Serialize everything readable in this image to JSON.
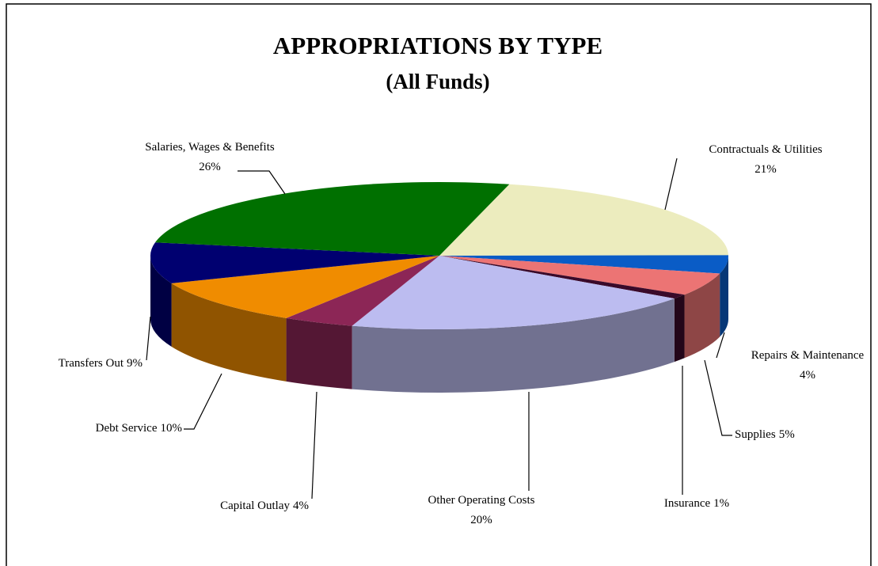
{
  "chart_data": {
    "type": "pie",
    "title": "APPROPRIATIONS BY TYPE",
    "subtitle": "(All Funds)",
    "categories": [
      "Contractuals & Utilities",
      "Repairs & Maintenance",
      "Supplies",
      "Insurance",
      "Other Operating Costs",
      "Capital Outlay",
      "Debt Service",
      "Transfers Out",
      "Salaries, Wages & Benefits"
    ],
    "values": [
      21,
      4,
      5,
      1,
      20,
      4,
      10,
      9,
      26
    ],
    "value_labels": [
      "21%",
      "4%",
      "5%",
      "1%",
      "20%",
      "4%",
      "10%",
      "9%",
      "26%"
    ],
    "colors": [
      "#ececbe",
      "#0a5cc6",
      "#ec7474",
      "#3a0a2a",
      "#bcbcf0",
      "#8c2656",
      "#f08c00",
      "#000070",
      "#007000"
    ]
  }
}
